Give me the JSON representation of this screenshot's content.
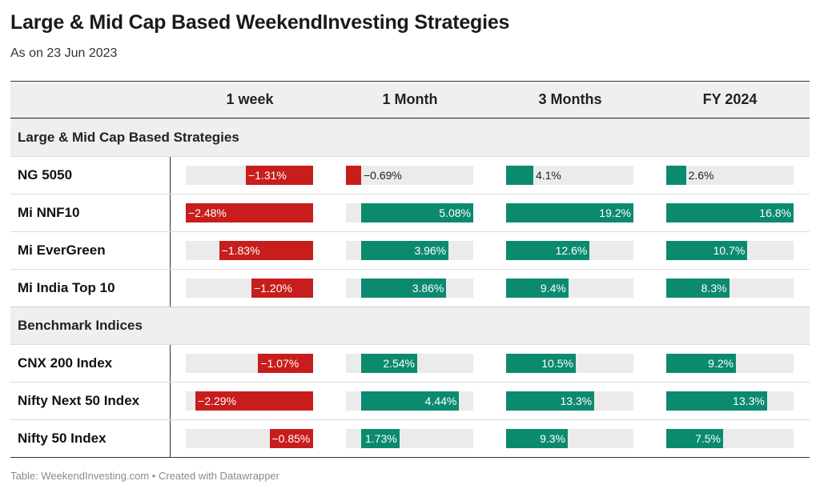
{
  "title": "Large & Mid Cap Based WeekendInvesting Strategies",
  "subtitle": "As on 23 Jun 2023",
  "footer": "Table: WeekendInvesting.com • Created with Datawrapper",
  "colors": {
    "negative": "#c71e1d",
    "positive": "#0c8a6f",
    "track": "#ebebeb",
    "band": "#efefef"
  },
  "headers": [
    "",
    "1 week",
    "1 Month",
    "3 Months",
    "FY 2024"
  ],
  "chart_data": {
    "type": "table",
    "columns": [
      {
        "name": "1 week",
        "min": -2.48,
        "max": 0
      },
      {
        "name": "1 Month",
        "min": -0.69,
        "max": 5.08
      },
      {
        "name": "3 Months",
        "min": 0,
        "max": 19.2
      },
      {
        "name": "FY 2024",
        "min": 0,
        "max": 16.8
      }
    ],
    "groups": [
      {
        "name": "Large & Mid Cap Based Strategies",
        "rows": [
          {
            "label": "NG 5050",
            "values": [
              -1.31,
              -0.69,
              4.1,
              2.6
            ],
            "texts": [
              "−1.31%",
              "−0.69%",
              "4.1%",
              "2.6%"
            ]
          },
          {
            "label": "Mi NNF10",
            "values": [
              -2.48,
              5.08,
              19.2,
              16.8
            ],
            "texts": [
              "−2.48%",
              "5.08%",
              "19.2%",
              "16.8%"
            ]
          },
          {
            "label": "Mi EverGreen",
            "values": [
              -1.83,
              3.96,
              12.6,
              10.7
            ],
            "texts": [
              "−1.83%",
              "3.96%",
              "12.6%",
              "10.7%"
            ]
          },
          {
            "label": "Mi India Top 10",
            "values": [
              -1.2,
              3.86,
              9.4,
              8.3
            ],
            "texts": [
              "−1.20%",
              "3.86%",
              "9.4%",
              "8.3%"
            ]
          }
        ]
      },
      {
        "name": "Benchmark Indices",
        "rows": [
          {
            "label": "CNX 200 Index",
            "values": [
              -1.07,
              2.54,
              10.5,
              9.2
            ],
            "texts": [
              "−1.07%",
              "2.54%",
              "10.5%",
              "9.2%"
            ]
          },
          {
            "label": "Nifty Next 50 Index",
            "values": [
              -2.29,
              4.44,
              13.3,
              13.3
            ],
            "texts": [
              "−2.29%",
              "4.44%",
              "13.3%",
              "13.3%"
            ]
          },
          {
            "label": "Nifty 50 Index",
            "values": [
              -0.85,
              1.73,
              9.3,
              7.5
            ],
            "texts": [
              "−0.85%",
              "1.73%",
              "9.3%",
              "7.5%"
            ]
          }
        ]
      }
    ]
  }
}
